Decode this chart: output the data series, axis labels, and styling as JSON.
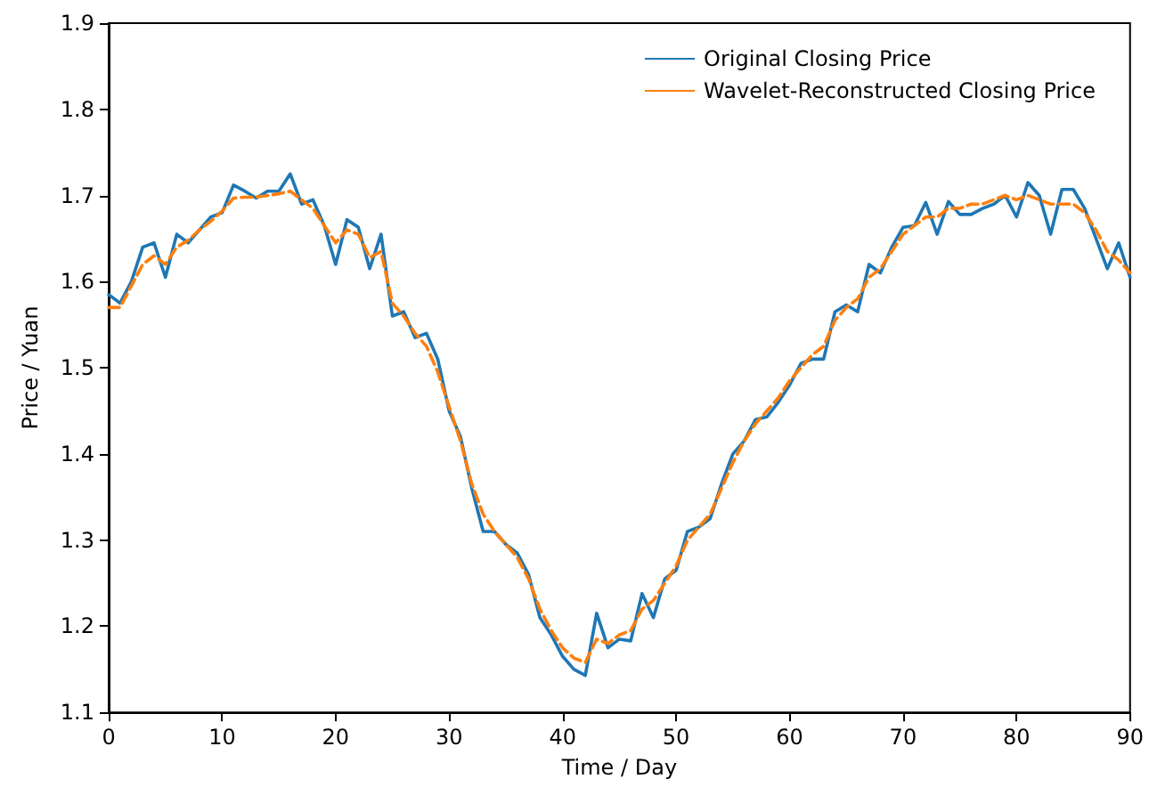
{
  "chart_data": {
    "type": "line",
    "xlabel": "Time / Day",
    "ylabel": "Price / Yuan",
    "xlim": [
      0,
      90
    ],
    "xticks": [
      0,
      10,
      20,
      30,
      40,
      50,
      60,
      70,
      80,
      90
    ],
    "ylim": [
      1.1,
      1.9
    ],
    "yticks": [
      1.1,
      1.2,
      1.3,
      1.4,
      1.5,
      1.6,
      1.7,
      1.8,
      1.9
    ],
    "legend": "top right",
    "grid": false,
    "x": [
      0,
      1,
      2,
      3,
      4,
      5,
      6,
      7,
      8,
      9,
      10,
      11,
      12,
      13,
      14,
      15,
      16,
      17,
      18,
      19,
      20,
      21,
      22,
      23,
      24,
      25,
      26,
      27,
      28,
      29,
      30,
      31,
      32,
      33,
      34,
      35,
      36,
      37,
      38,
      39,
      40,
      41,
      42,
      43,
      44,
      45,
      46,
      47,
      48,
      49,
      50,
      51,
      52,
      53,
      54,
      55,
      56,
      57,
      58,
      59,
      60,
      61,
      62,
      63,
      64,
      65,
      66,
      67,
      68,
      69,
      70,
      71,
      72,
      73,
      74,
      75,
      76,
      77,
      78,
      79,
      80,
      81,
      82,
      83,
      84,
      85,
      86,
      87,
      88,
      89,
      90
    ],
    "series": [
      {
        "name": "Original Closing Price",
        "color": "#1f77b4",
        "line_style": "solid",
        "values": [
          1.585,
          1.575,
          1.6,
          1.64,
          1.645,
          1.605,
          1.655,
          1.645,
          1.66,
          1.675,
          1.68,
          1.712,
          1.705,
          1.697,
          1.705,
          1.705,
          1.725,
          1.69,
          1.695,
          1.665,
          1.62,
          1.672,
          1.663,
          1.615,
          1.655,
          1.56,
          1.565,
          1.535,
          1.54,
          1.51,
          1.45,
          1.42,
          1.36,
          1.31,
          1.31,
          1.295,
          1.285,
          1.26,
          1.21,
          1.19,
          1.165,
          1.15,
          1.143,
          1.215,
          1.175,
          1.185,
          1.183,
          1.238,
          1.21,
          1.255,
          1.265,
          1.31,
          1.315,
          1.325,
          1.365,
          1.4,
          1.415,
          1.44,
          1.443,
          1.46,
          1.48,
          1.505,
          1.51,
          1.51,
          1.565,
          1.573,
          1.565,
          1.62,
          1.61,
          1.64,
          1.663,
          1.665,
          1.692,
          1.655,
          1.693,
          1.678,
          1.678,
          1.685,
          1.69,
          1.7,
          1.675,
          1.715,
          1.7,
          1.655,
          1.707,
          1.707,
          1.685,
          1.65,
          1.615,
          1.645,
          1.605
        ]
      },
      {
        "name": "Wavelet-Reconstructed Closing Price",
        "color": "#ff7f0e",
        "line_style": "dashed",
        "values": [
          1.57,
          1.57,
          1.595,
          1.62,
          1.63,
          1.62,
          1.64,
          1.648,
          1.66,
          1.67,
          1.682,
          1.697,
          1.698,
          1.698,
          1.7,
          1.702,
          1.705,
          1.695,
          1.685,
          1.665,
          1.645,
          1.66,
          1.655,
          1.628,
          1.635,
          1.575,
          1.56,
          1.54,
          1.525,
          1.495,
          1.455,
          1.415,
          1.365,
          1.33,
          1.31,
          1.295,
          1.28,
          1.255,
          1.22,
          1.195,
          1.175,
          1.163,
          1.158,
          1.185,
          1.18,
          1.19,
          1.195,
          1.22,
          1.23,
          1.25,
          1.27,
          1.3,
          1.315,
          1.33,
          1.36,
          1.39,
          1.415,
          1.435,
          1.45,
          1.465,
          1.485,
          1.5,
          1.515,
          1.525,
          1.555,
          1.57,
          1.58,
          1.605,
          1.615,
          1.635,
          1.655,
          1.665,
          1.675,
          1.675,
          1.685,
          1.685,
          1.69,
          1.69,
          1.695,
          1.7,
          1.695,
          1.7,
          1.695,
          1.69,
          1.69,
          1.69,
          1.68,
          1.66,
          1.635,
          1.625,
          1.61
        ]
      }
    ]
  }
}
